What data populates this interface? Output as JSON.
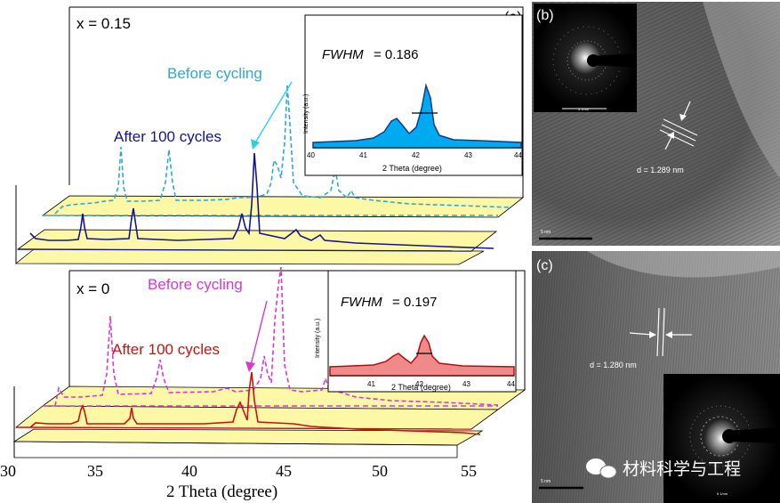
{
  "panel_a": {
    "label": "(a)",
    "xaxis": {
      "label": "2 Theta (degree)",
      "ticks": [
        "30",
        "35",
        "40",
        "45",
        "50",
        "55"
      ]
    },
    "top": {
      "composition": "x = 0.15",
      "before_label": "Before cycling",
      "after_label": "After 100 cycles",
      "before_color": "#2ea8d4",
      "after_color": "#14148c",
      "inset": {
        "fwhm_label": "FWHM",
        "fwhm_value": "= 0.186",
        "ylabel": "Intensity (a.u.)",
        "xlabel": "2 Theta (degree)",
        "xticks": [
          "40",
          "41",
          "42",
          "43",
          "44"
        ],
        "fill_color": "#00aaf0"
      }
    },
    "bottom": {
      "composition": "x = 0",
      "before_label": "Before cycling",
      "after_label": "After 100 cycles",
      "before_color": "#d43ad4",
      "after_color": "#cc1010",
      "inset": {
        "fwhm_label": "FWHM",
        "fwhm_value": "= 0.197",
        "ylabel": "Intensity (a.u.)",
        "xlabel": "2 Theta (degree)",
        "xticks": [
          "41",
          "42",
          "43",
          "44"
        ],
        "fill_color": "#f08a8a"
      }
    },
    "plane_color": "#fdf8a6"
  },
  "panel_b": {
    "label": "(b)",
    "d_spacing": "d = 1.289 nm",
    "scale_bar": "5 nm",
    "saed_scale": "5 1/nm"
  },
  "panel_c": {
    "label": "(c)",
    "d_spacing": "d = 1.280 nm",
    "scale_bar": "5 nm",
    "saed_scale": "5 1/nm"
  },
  "watermark": {
    "text": "材料科学与工程"
  }
}
